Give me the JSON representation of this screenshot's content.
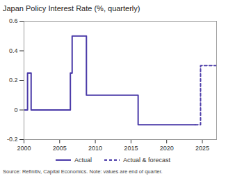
{
  "chart_data": {
    "type": "line",
    "title": "Japan Policy Interest Rate (%, quarterly)",
    "caption": "Source: Refinitiv, Capital Economics. Note: values are end of quarter.",
    "series": [
      {
        "name": "Actual",
        "color": "#4a3aa8",
        "line_style": "solid",
        "x": [
          2000,
          2000.5,
          2001,
          2006.5,
          2006.75,
          2008.75,
          2016,
          2024
        ],
        "values": [
          0,
          0.25,
          0,
          0.25,
          0.5,
          0.1,
          -0.1,
          -0.1
        ]
      },
      {
        "name": "Actual & forecast",
        "color": "#4a3aa8",
        "line_style": "dashed",
        "x": [
          2024,
          2024.75,
          2027
        ],
        "values": [
          -0.1,
          0.3,
          0.3
        ]
      }
    ],
    "xlim": [
      2000,
      2027
    ],
    "xticks": [
      2000,
      2005,
      2010,
      2015,
      2020,
      2025
    ],
    "ylim": [
      -0.2,
      0.6
    ],
    "yticks": [
      -0.2,
      0,
      0.2,
      0.4,
      0.6
    ],
    "grid": false,
    "legend": "bottom"
  }
}
